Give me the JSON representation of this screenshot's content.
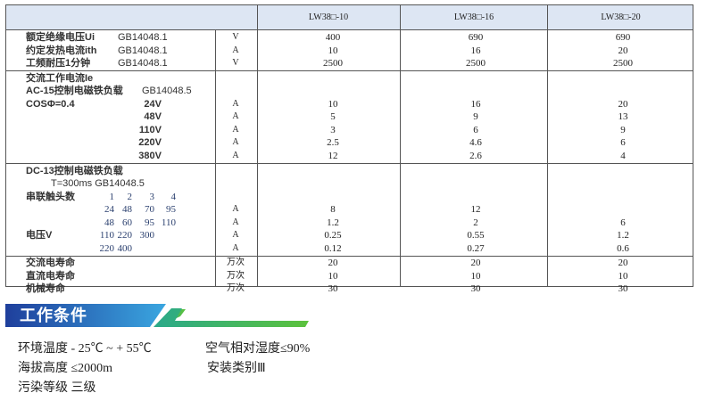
{
  "table": {
    "headers": [
      "LW38□-10",
      "LW38□-16",
      "LW38□-20"
    ],
    "rows": [
      {
        "label": "额定绝缘电压Ui",
        "std": "GB14048.1",
        "subs": [],
        "unit": "V",
        "values": [
          "400",
          "690",
          "690"
        ]
      },
      {
        "label": "约定发热电流ith",
        "std": "GB14048.1",
        "subs": [],
        "unit": "A",
        "values": [
          "10",
          "16",
          "20"
        ]
      },
      {
        "label": "工频耐压1分钟",
        "std": "GB14048.1",
        "subs": [],
        "unit": "V",
        "values": [
          "2500",
          "2500",
          "2500"
        ],
        "border": true
      },
      {
        "label": "交流工作电流Ie",
        "std": "",
        "subs": [],
        "unit": "",
        "values": [
          "",
          "",
          ""
        ]
      },
      {
        "label": "AC-15控制电磁铁负载",
        "std": "GB14048.5",
        "subs": [],
        "unit": "",
        "values": [
          "",
          "",
          ""
        ]
      },
      {
        "label": "COSΦ=0.4",
        "std": "24V",
        "subs": [],
        "unit": "A",
        "values": [
          "10",
          "16",
          "20"
        ]
      },
      {
        "label": "",
        "std": "48V",
        "subs": [],
        "unit": "A",
        "values": [
          "5",
          "9",
          "13"
        ]
      },
      {
        "label": "",
        "std": "110V",
        "subs": [],
        "unit": "A",
        "values": [
          "3",
          "6",
          "9"
        ]
      },
      {
        "label": "",
        "std": "220V",
        "subs": [],
        "unit": "A",
        "values": [
          "2.5",
          "4.6",
          "6"
        ]
      },
      {
        "label": "",
        "std": "380V",
        "subs": [],
        "unit": "A",
        "values": [
          "12",
          "2.6",
          "4"
        ],
        "border": true
      },
      {
        "label": "DC-13控制电磁铁负载",
        "std": "",
        "subs": [],
        "unit": "",
        "values": [
          "",
          "",
          ""
        ]
      },
      {
        "label": "",
        "std": "T=300ms   GB14048.5",
        "subs": [],
        "unit": "",
        "values": [
          "",
          "",
          ""
        ]
      },
      {
        "label": "串联触头数",
        "std": "",
        "subs": [
          "1",
          "2",
          "3",
          "4"
        ],
        "unit": "",
        "values": [
          "",
          "",
          ""
        ]
      },
      {
        "label": "",
        "std": "",
        "subs": [
          "24",
          "48",
          "70",
          "95"
        ],
        "unit": "A",
        "values": [
          "8",
          "12",
          ""
        ]
      },
      {
        "label": "",
        "std": "",
        "subs": [
          "48",
          "60",
          "95",
          "110"
        ],
        "unit": "A",
        "values": [
          "1.2",
          "2",
          "6"
        ]
      },
      {
        "label": "电压V",
        "std": "",
        "subs": [
          "110",
          "220",
          "300"
        ],
        "unit": "A",
        "values": [
          "0.25",
          "0.55",
          "1.2"
        ]
      },
      {
        "label": "",
        "std": "",
        "subs": [
          "220",
          "400"
        ],
        "unit": "A",
        "values": [
          "0.12",
          "0.27",
          "0.6"
        ],
        "border": true
      },
      {
        "label": "交流电寿命",
        "std": "",
        "subs": [],
        "unit": "万次",
        "values": [
          "20",
          "20",
          "20"
        ]
      },
      {
        "label": "直流电寿命",
        "std": "",
        "subs": [],
        "unit": "万次",
        "values": [
          "10",
          "10",
          "10"
        ]
      },
      {
        "label": "机械寿命",
        "std": "",
        "subs": [],
        "unit": "万次",
        "values": [
          "30",
          "30",
          "30"
        ]
      }
    ]
  },
  "section": {
    "title": "工作条件",
    "colors": {
      "blue": "#1f4fa8",
      "green": "#3fb54a"
    }
  },
  "conditions": {
    "temp": "环境温度 - 25℃ ~ + 55℃",
    "humidity": "空气相对湿度≤90%",
    "altitude": "海拔高度 ≤2000m",
    "install": "安装类别Ⅲ",
    "pollution": "污染等级 三级"
  }
}
